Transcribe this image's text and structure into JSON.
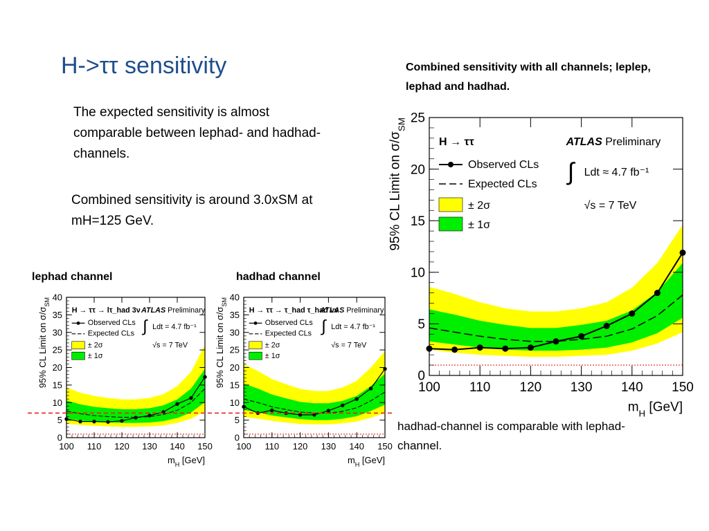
{
  "slide": {
    "title": "H->ττ sensitivity",
    "paragraph1": "The expected sensitivity is almost comparable between lephad- and hadhad-channels.",
    "paragraph2": "Combined sensitivity is around 3.0xSM at mH=125 GeV.",
    "paragraph3": "hadhad-channel is comparable with lephad-channel.",
    "combined_caption": "Combined sensitivity with all channels; leplep, lephad and hadhad.",
    "lephad_label": "lephad channel",
    "hadhad_label": "hadhad channel"
  },
  "colors": {
    "title": "#1f4e8c",
    "band_2sigma": "#ffff00",
    "band_1sigma": "#00ee00",
    "reference_line": "#e8231b",
    "sm_line": "#e8231b"
  },
  "chart_data": [
    {
      "id": "combined",
      "type": "line",
      "title": "",
      "xlabel": "m_H [GeV]",
      "ylabel": "95% CL Limit on σ/σ_SM",
      "xlim": [
        100,
        150
      ],
      "ylim": [
        0,
        25
      ],
      "xticks": [
        100,
        110,
        120,
        130,
        140,
        150
      ],
      "yticks": [
        0,
        5,
        10,
        15,
        20,
        25
      ],
      "process": "H → ττ",
      "atlas": "ATLAS",
      "preliminary": "Preliminary",
      "lumi": "Ldt ≈ 4.7 fb⁻¹",
      "energy": "√s = 7 TeV",
      "legend": {
        "observed": "Observed CLs",
        "expected": "Expected CLs",
        "band2": "± 2σ",
        "band1": "± 1σ"
      },
      "x": [
        100,
        105,
        110,
        115,
        120,
        125,
        130,
        135,
        140,
        145,
        150
      ],
      "observed": [
        2.6,
        2.5,
        2.7,
        2.6,
        2.7,
        3.3,
        3.8,
        4.8,
        6.0,
        8.0,
        11.9
      ],
      "expected": [
        4.6,
        4.2,
        3.8,
        3.5,
        3.3,
        3.3,
        3.5,
        3.8,
        4.5,
        5.8,
        7.8
      ],
      "band1_low": [
        3.3,
        3.0,
        2.7,
        2.5,
        2.4,
        2.4,
        2.5,
        2.7,
        3.2,
        4.1,
        5.6
      ],
      "band1_high": [
        6.4,
        5.9,
        5.3,
        4.9,
        4.6,
        4.6,
        4.9,
        5.3,
        6.3,
        8.1,
        10.9
      ],
      "band2_low": [
        2.5,
        2.2,
        2.0,
        1.9,
        1.8,
        1.8,
        1.9,
        2.0,
        2.4,
        3.1,
        4.2
      ],
      "band2_high": [
        8.6,
        7.9,
        7.1,
        6.5,
        6.2,
        6.2,
        6.5,
        7.1,
        8.5,
        10.9,
        14.6
      ],
      "sm_level": 1
    },
    {
      "id": "lephad",
      "type": "line",
      "title": "",
      "xlabel": "m_H [GeV]",
      "ylabel": "95% CL Limit on σ/σ_SM",
      "xlim": [
        100,
        150
      ],
      "ylim": [
        0,
        40
      ],
      "xticks": [
        100,
        110,
        120,
        130,
        140,
        150
      ],
      "yticks": [
        0,
        5,
        10,
        15,
        20,
        25,
        30,
        35,
        40
      ],
      "process": "H → ττ → lτ_had 3ν",
      "atlas": "ATLAS",
      "preliminary": "Preliminary",
      "lumi": "Ldt = 4.7 fb⁻¹",
      "energy": "√s = 7 TeV",
      "legend": {
        "observed": "Observed CLs",
        "expected": "Expected CLs",
        "band2": "± 2σ",
        "band1": "± 1σ"
      },
      "x": [
        100,
        105,
        110,
        115,
        120,
        125,
        130,
        135,
        140,
        145,
        150
      ],
      "observed": [
        5.3,
        4.6,
        4.6,
        4.5,
        4.8,
        5.7,
        6.3,
        7.3,
        9.6,
        11.3,
        17.3
      ],
      "expected": [
        7.6,
        6.8,
        6.3,
        6.0,
        5.8,
        5.8,
        6.0,
        6.6,
        7.8,
        10.0,
        14.0
      ],
      "band1_low": [
        5.4,
        4.9,
        4.5,
        4.3,
        4.2,
        4.2,
        4.3,
        4.7,
        5.6,
        7.2,
        10.1
      ],
      "band1_high": [
        10.6,
        9.5,
        8.8,
        8.4,
        8.1,
        8.1,
        8.4,
        9.2,
        10.9,
        14.0,
        19.6
      ],
      "band2_low": [
        4.0,
        3.6,
        3.4,
        3.2,
        3.1,
        3.1,
        3.2,
        3.5,
        4.2,
        5.4,
        7.5
      ],
      "band2_high": [
        14.3,
        12.8,
        11.9,
        11.3,
        10.9,
        10.9,
        11.3,
        12.4,
        14.7,
        18.8,
        26.4
      ],
      "sm_level": 1
    },
    {
      "id": "hadhad",
      "type": "line",
      "title": "",
      "xlabel": "m_H [GeV]",
      "ylabel": "95% CL Limit on σ/σ_SM",
      "xlim": [
        100,
        150
      ],
      "ylim": [
        0,
        40
      ],
      "xticks": [
        100,
        110,
        120,
        130,
        140,
        150
      ],
      "yticks": [
        0,
        5,
        10,
        15,
        20,
        25,
        30,
        35,
        40
      ],
      "process": "H → ττ → τ_had τ_had νν",
      "atlas": "ATLAS",
      "preliminary": "Preliminary",
      "lumi": "Ldt = 4.7 fb⁻¹",
      "energy": "√s = 7 TeV",
      "legend": {
        "observed": "Observed CLs",
        "expected": "Expected CLs",
        "band2": "± 2σ",
        "band1": "± 1σ"
      },
      "x": [
        100,
        105,
        110,
        115,
        120,
        125,
        130,
        135,
        140,
        145,
        150
      ],
      "observed": [
        8.8,
        7.0,
        7.8,
        7.0,
        6.5,
        6.5,
        7.7,
        9.2,
        11.0,
        14.0,
        19.6
      ],
      "expected": [
        11.0,
        10.0,
        8.8,
        8.0,
        7.3,
        7.0,
        7.0,
        7.5,
        8.5,
        10.5,
        13.0
      ],
      "band1_low": [
        7.9,
        7.2,
        6.3,
        5.8,
        5.3,
        5.0,
        5.0,
        5.4,
        6.1,
        7.6,
        9.4
      ],
      "band1_high": [
        15.4,
        14.0,
        12.3,
        11.2,
        10.2,
        9.8,
        9.8,
        10.5,
        11.9,
        14.7,
        18.2
      ],
      "band2_low": [
        5.9,
        5.4,
        4.8,
        4.3,
        3.9,
        3.8,
        3.8,
        4.1,
        4.6,
        5.7,
        7.0
      ],
      "band2_high": [
        21.0,
        19.0,
        16.7,
        15.2,
        13.9,
        13.3,
        13.3,
        14.3,
        16.2,
        20.0,
        24.7
      ],
      "sm_level": 1
    }
  ],
  "reference_line_value": 7.0
}
